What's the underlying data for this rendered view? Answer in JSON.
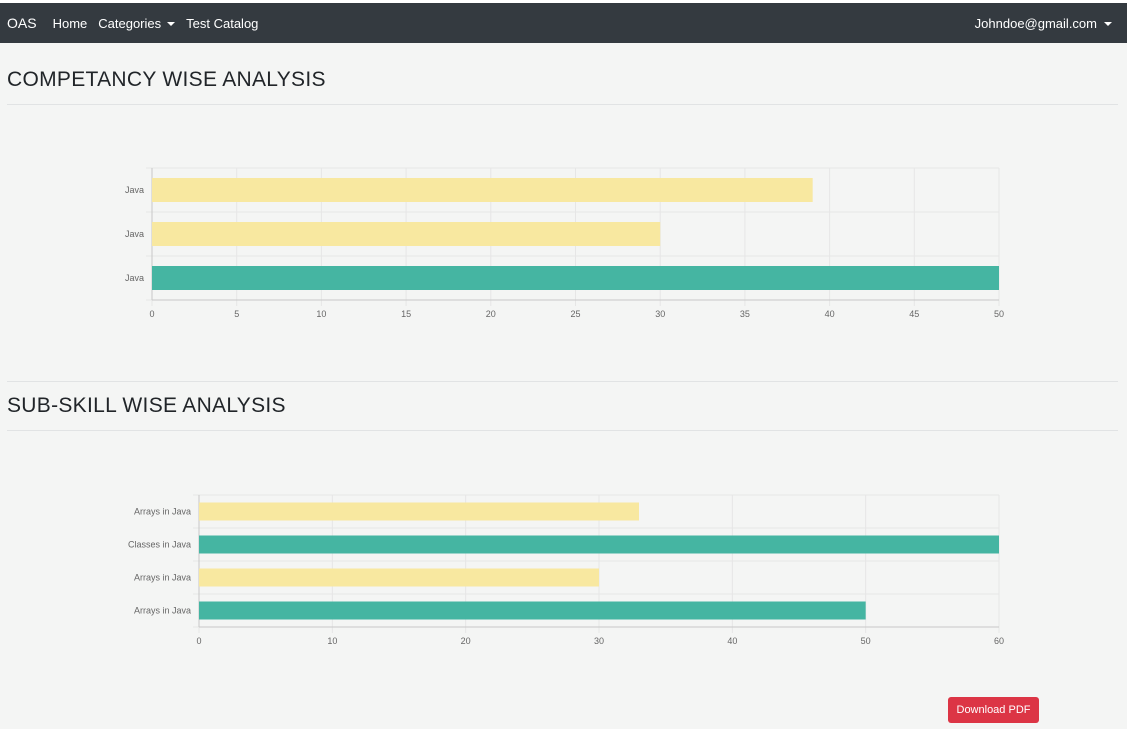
{
  "nav": {
    "brand": "OAS",
    "home": "Home",
    "categories": "Categories",
    "test_catalog": "Test Catalog",
    "user": "Johndoe@gmail.com"
  },
  "sections": {
    "competency_title": "COMPETANCY WISE ANALYSIS",
    "subskill_title": "SUB-SKILL WISE ANALYSIS"
  },
  "actions": {
    "download_pdf": "Download PDF"
  },
  "colors": {
    "bar_yellow": "#f8e8a0",
    "bar_teal": "#45b5a2"
  },
  "chart_data": [
    {
      "type": "bar",
      "orientation": "horizontal",
      "categories": [
        "Java",
        "Java",
        "Java"
      ],
      "values": [
        39,
        30,
        50
      ],
      "colors": [
        "#f8e8a0",
        "#f8e8a0",
        "#45b5a2"
      ],
      "xlim": [
        0,
        50
      ],
      "xticks": [
        0,
        5,
        10,
        15,
        20,
        25,
        30,
        35,
        40,
        45,
        50
      ],
      "grid": true
    },
    {
      "type": "bar",
      "orientation": "horizontal",
      "categories": [
        "Arrays in Java",
        "Classes in Java",
        "Arrays in Java",
        "Arrays in Java"
      ],
      "values": [
        33,
        60,
        30,
        50
      ],
      "colors": [
        "#f8e8a0",
        "#45b5a2",
        "#f8e8a0",
        "#45b5a2"
      ],
      "xlim": [
        0,
        60
      ],
      "xticks": [
        0,
        10,
        20,
        30,
        40,
        50,
        60
      ],
      "grid": true
    }
  ]
}
